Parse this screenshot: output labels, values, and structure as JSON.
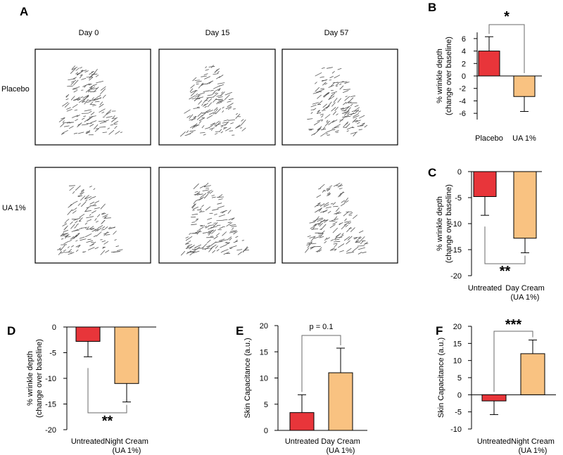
{
  "colors": {
    "red": "#e8353a",
    "orange": "#f9c281",
    "axis": "#000000",
    "line": "#6a6a6a"
  },
  "panel_a": {
    "letter": "A",
    "columns": [
      "Day 0",
      "Day 15",
      "Day 57"
    ],
    "rows": [
      "Placebo",
      "UA 1%"
    ]
  },
  "chart_data": [
    {
      "id": "B",
      "letter": "B",
      "type": "bar",
      "categories": [
        "Placebo",
        "UA 1%"
      ],
      "values": [
        4.0,
        -3.3
      ],
      "errors": [
        2.3,
        2.4
      ],
      "ylim": [
        -7,
        7
      ],
      "yticks": [
        6,
        4,
        2,
        0,
        -2,
        -4,
        -6
      ],
      "ylabel": [
        "% wrinkle depth",
        "(change over baseline)"
      ],
      "significance": "*"
    },
    {
      "id": "C",
      "letter": "C",
      "type": "bar",
      "categories": [
        "Untreated",
        "Day Cream (UA 1%)"
      ],
      "values": [
        -4.8,
        -12.8
      ],
      "errors": [
        3.6,
        2.8
      ],
      "ylim": [
        -20,
        0
      ],
      "yticks": [
        0,
        -5,
        -10,
        -15,
        -20
      ],
      "ylabel": [
        "% wrinkle depth",
        "(change over baseline)"
      ],
      "significance": "**"
    },
    {
      "id": "D",
      "letter": "D",
      "type": "bar",
      "categories": [
        "Untreated",
        "Night Cream (UA 1%)"
      ],
      "values": [
        -2.8,
        -11.0
      ],
      "errors": [
        3.0,
        3.6
      ],
      "ylim": [
        -20,
        0
      ],
      "yticks": [
        0,
        -5,
        -10,
        -15,
        -20
      ],
      "ylabel": [
        "% wrinkle depth",
        "(change over baseline)"
      ],
      "significance": "**"
    },
    {
      "id": "E",
      "letter": "E",
      "type": "bar",
      "categories": [
        "Untreated",
        "Day Cream (UA 1%)"
      ],
      "values": [
        3.4,
        11.0
      ],
      "errors": [
        3.4,
        4.7
      ],
      "ylim": [
        0,
        20
      ],
      "yticks": [
        0,
        5,
        10,
        15,
        20
      ],
      "ylabel": [
        "Skin  Capacitance (a.u.)"
      ],
      "significance": "p = 0.1"
    },
    {
      "id": "F",
      "letter": "F",
      "type": "bar",
      "categories": [
        "Untreated",
        "Night Cream (UA 1%)"
      ],
      "values": [
        -1.8,
        12.0
      ],
      "errors": [
        4.0,
        4.0
      ],
      "ylim": [
        -10,
        20
      ],
      "yticks": [
        20,
        15,
        10,
        5,
        0,
        -5,
        -10
      ],
      "ylabel": [
        "Skin  Capacitance (a.u.)"
      ],
      "significance": "***"
    }
  ]
}
